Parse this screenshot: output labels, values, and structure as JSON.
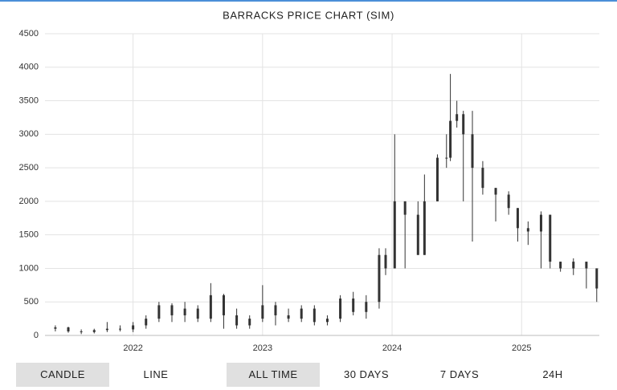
{
  "chart_data": {
    "type": "candlestick",
    "title": "BARRACKS PRICE CHART (SIM)",
    "x": [
      2021.4,
      2021.5,
      2021.6,
      2021.7,
      2021.8,
      2021.9,
      2022.0,
      2022.1,
      2022.2,
      2022.3,
      2022.4,
      2022.5,
      2022.6,
      2022.7,
      2022.8,
      2022.9,
      2023.0,
      2023.1,
      2023.2,
      2023.3,
      2023.4,
      2023.5,
      2023.6,
      2023.7,
      2023.8,
      2023.9,
      2023.95,
      2024.02,
      2024.1,
      2024.2,
      2024.25,
      2024.35,
      2024.42,
      2024.45,
      2024.5,
      2024.55,
      2024.62,
      2024.7,
      2024.8,
      2024.9,
      2024.97,
      2025.05,
      2025.15,
      2025.22,
      2025.3,
      2025.4,
      2025.5,
      2025.58
    ],
    "open": [
      100,
      120,
      60,
      50,
      80,
      100,
      90,
      150,
      250,
      450,
      300,
      400,
      250,
      600,
      300,
      150,
      250,
      450,
      300,
      250,
      400,
      200,
      250,
      550,
      350,
      500,
      1200,
      1000,
      2000,
      1800,
      1200,
      2000,
      2650,
      2650,
      3200,
      3300,
      3000,
      2500,
      2200,
      2100,
      1900,
      1600,
      1550,
      1800,
      1100,
      1000,
      1100,
      1000
    ],
    "high": [
      150,
      130,
      90,
      100,
      200,
      150,
      200,
      300,
      500,
      480,
      500,
      450,
      780,
      620,
      400,
      300,
      750,
      500,
      400,
      450,
      450,
      300,
      600,
      650,
      600,
      1300,
      1300,
      3000,
      2000,
      2000,
      2400,
      2700,
      3000,
      3900,
      3500,
      3350,
      3350,
      2600,
      2200,
      2150,
      1900,
      1700,
      1850,
      1800,
      1100,
      1150,
      1100,
      1000
    ],
    "low": [
      60,
      40,
      20,
      30,
      50,
      60,
      50,
      100,
      200,
      200,
      200,
      200,
      200,
      100,
      100,
      100,
      200,
      150,
      200,
      200,
      150,
      150,
      200,
      300,
      250,
      400,
      900,
      1000,
      1000,
      1200,
      1200,
      2000,
      2500,
      2600,
      3100,
      2000,
      1400,
      2100,
      1700,
      1800,
      1400,
      1350,
      1000,
      1000,
      950,
      900,
      700,
      500
    ],
    "close": [
      120,
      60,
      50,
      80,
      100,
      90,
      150,
      250,
      450,
      300,
      400,
      250,
      600,
      300,
      150,
      250,
      450,
      300,
      250,
      400,
      200,
      250,
      550,
      350,
      500,
      1200,
      1000,
      2000,
      1800,
      1200,
      2000,
      2650,
      2650,
      3200,
      3300,
      3000,
      2500,
      2200,
      2100,
      1900,
      1600,
      1550,
      1800,
      1100,
      1000,
      1100,
      1000,
      700
    ],
    "color": "#333333",
    "xlim": [
      2021.32,
      2025.6
    ],
    "xticks": [
      2022,
      2023,
      2024,
      2025
    ],
    "ylim": [
      0,
      4500
    ],
    "yticks": [
      0,
      500,
      1000,
      1500,
      2000,
      2500,
      3000,
      3500,
      4000,
      4500
    ],
    "grid": true
  },
  "controls": {
    "chart_type": [
      {
        "label": "CANDLE",
        "active": true
      },
      {
        "label": "LINE",
        "active": false
      }
    ],
    "range": [
      {
        "label": "ALL TIME",
        "active": true
      },
      {
        "label": "30 DAYS",
        "active": false
      },
      {
        "label": "7 DAYS",
        "active": false
      },
      {
        "label": "24H",
        "active": false
      }
    ]
  }
}
